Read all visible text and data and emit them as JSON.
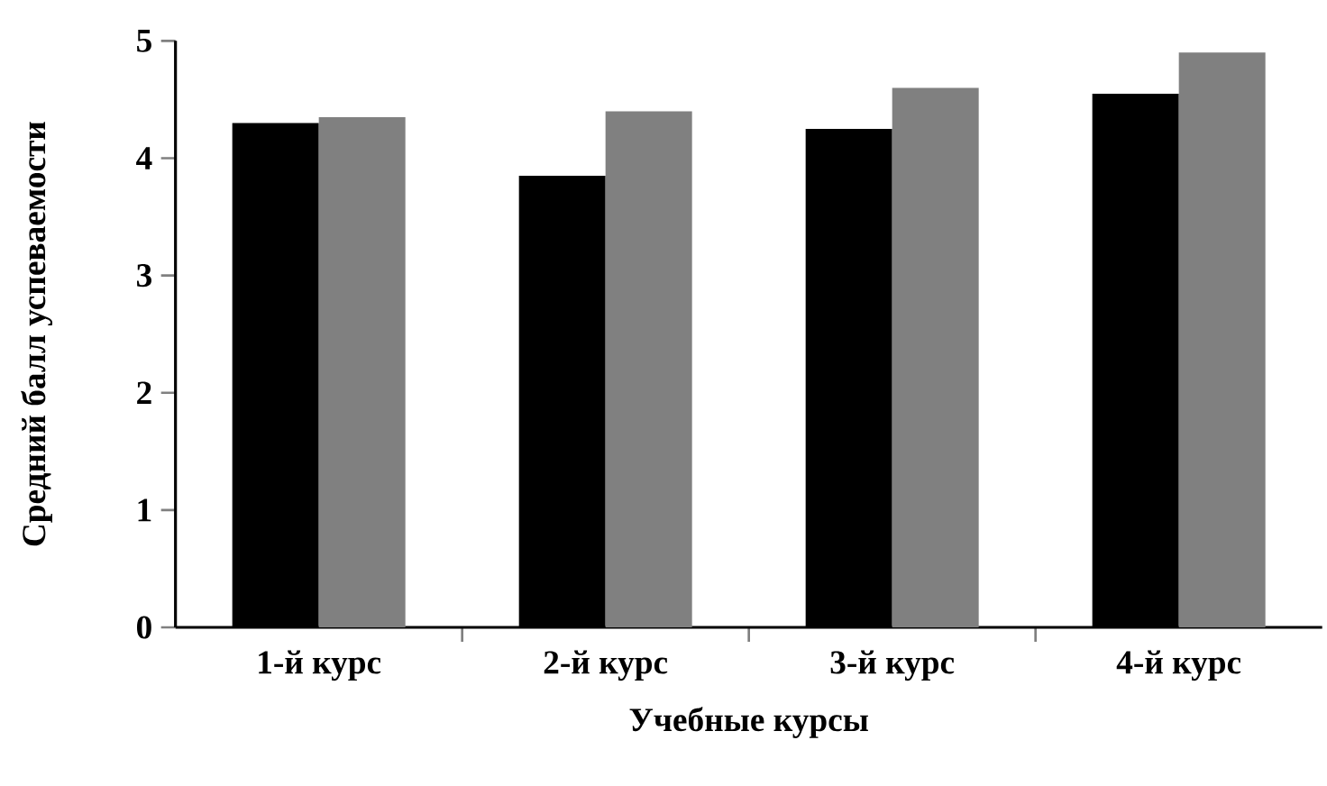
{
  "chart_data": {
    "type": "bar",
    "xlabel": "Учебные курсы",
    "ylabel": "Средний балл успеваемости",
    "categories": [
      "1-й курс",
      "2-й курс",
      "3-й курс",
      "4-й курс"
    ],
    "series": [
      {
        "color": "#000000",
        "values": [
          4.3,
          3.85,
          4.25,
          4.55
        ]
      },
      {
        "color": "#808080",
        "values": [
          4.35,
          4.4,
          4.6,
          4.9
        ]
      }
    ],
    "ylim": [
      0,
      5
    ],
    "yticks": [
      0,
      1,
      2,
      3,
      4,
      5
    ]
  }
}
